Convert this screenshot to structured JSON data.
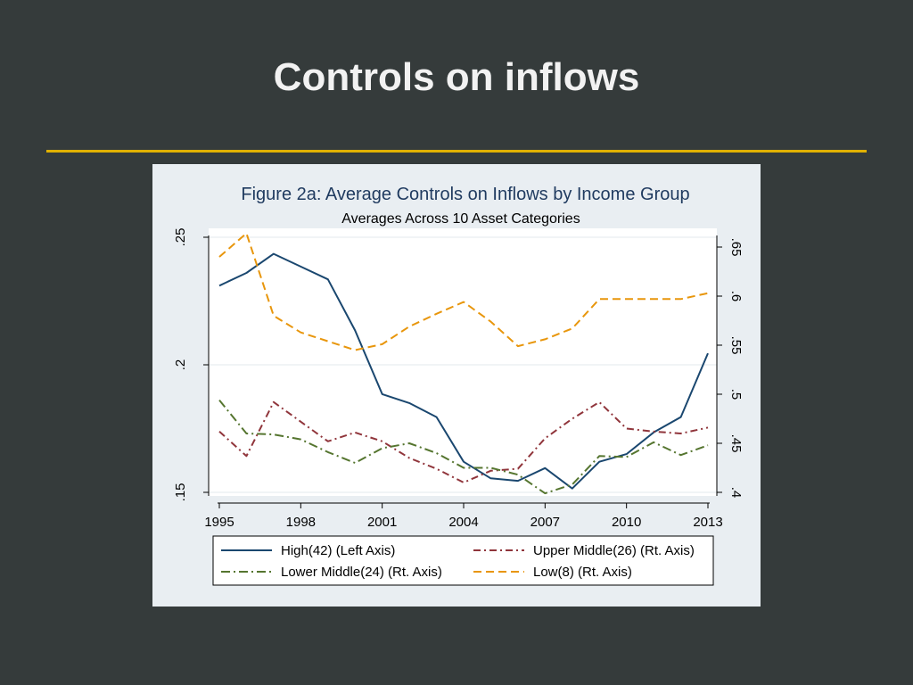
{
  "slide": {
    "title": "Controls on inflows"
  },
  "colors": {
    "background": "#353b3b",
    "rule": "#e0b100",
    "panel": "#e9eef2",
    "title_text": "#f2f2f2"
  },
  "chart_data": {
    "type": "line",
    "title": "Figure 2a: Average Controls on Inflows by Income Group",
    "subtitle": "Averages Across 10 Asset Categories",
    "x": [
      1995,
      1996,
      1997,
      1998,
      1999,
      2000,
      2001,
      2002,
      2003,
      2004,
      2005,
      2006,
      2007,
      2008,
      2009,
      2010,
      2011,
      2012,
      2013
    ],
    "x_ticks": [
      "1995",
      "1998",
      "2001",
      "2004",
      "2007",
      "2010",
      "2013"
    ],
    "xlim": [
      1995,
      2013
    ],
    "y_left": {
      "lim": [
        0.15,
        0.25
      ],
      "ticks": [
        0.15,
        0.2,
        0.25
      ],
      "tick_labels": [
        ".15",
        ".2",
        ".25"
      ]
    },
    "y_right": {
      "lim": [
        0.4,
        0.66
      ],
      "ticks": [
        0.4,
        0.45,
        0.5,
        0.55,
        0.6,
        0.65
      ],
      "tick_labels": [
        ".4",
        ".45",
        ".5",
        ".55",
        ".6",
        ".65"
      ]
    },
    "grid": true,
    "legend_position": "bottom",
    "series": [
      {
        "name": "High(42) (Left Axis)",
        "axis": "left",
        "color": "#1a476f",
        "dash": "solid",
        "values": [
          0.231,
          0.236,
          0.2435,
          0.2385,
          0.2335,
          0.2135,
          0.1885,
          0.185,
          0.1795,
          0.162,
          0.1555,
          0.1545,
          0.1595,
          0.1515,
          0.162,
          0.165,
          0.1735,
          0.1795,
          0.2045
        ]
      },
      {
        "name": "Upper Middle(26) (Rt. Axis)",
        "axis": "right",
        "color": "#90353b",
        "dash": "dash-dot",
        "values": [
          0.462,
          0.437,
          0.492,
          0.472,
          0.452,
          0.461,
          0.452,
          0.435,
          0.424,
          0.41,
          0.422,
          0.424,
          0.455,
          0.475,
          0.492,
          0.465,
          0.462,
          0.46,
          0.466
        ]
      },
      {
        "name": "Lower Middle(24) (Rt. Axis)",
        "axis": "right",
        "color": "#55752f",
        "dash": "long-dash-dot",
        "values": [
          0.494,
          0.46,
          0.459,
          0.454,
          0.441,
          0.43,
          0.445,
          0.45,
          0.44,
          0.425,
          0.425,
          0.418,
          0.399,
          0.408,
          0.437,
          0.436,
          0.451,
          0.438,
          0.448
        ]
      },
      {
        "name": "Low(8) (Rt. Axis)",
        "axis": "right",
        "color": "#e8960c",
        "dash": "dashed",
        "values": [
          0.64,
          0.664,
          0.58,
          0.563,
          0.554,
          0.545,
          0.551,
          0.569,
          0.582,
          0.594,
          0.574,
          0.549,
          0.556,
          0.567,
          0.597,
          0.597,
          0.597,
          0.597,
          0.603
        ]
      }
    ]
  }
}
